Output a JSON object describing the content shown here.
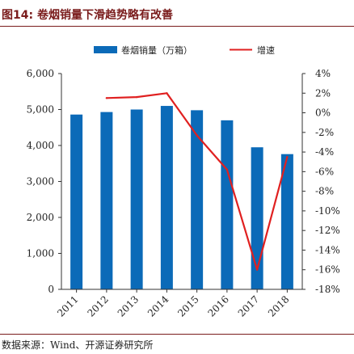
{
  "header": {
    "title": "图14: 卷烟销量下滑趋势略有改善"
  },
  "footer": {
    "source": "数据来源：Wind、开源证券研究所"
  },
  "colors": {
    "bar": "#0b6ab8",
    "line": "#e02020",
    "title": "#7a1c1c",
    "axis": "#333333"
  },
  "chart_data": {
    "type": "bar",
    "categories": [
      "2011",
      "2012",
      "2013",
      "2014",
      "2015",
      "2016",
      "2017",
      "2018"
    ],
    "series": [
      {
        "name": "卷烟销量（万箱）",
        "type": "bar",
        "axis": "left",
        "values": [
          4860,
          4930,
          5000,
          5100,
          4980,
          4700,
          3950,
          3760
        ]
      },
      {
        "name": "增速",
        "type": "line",
        "axis": "right",
        "values": [
          null,
          1.5,
          1.6,
          2.0,
          -2.3,
          -5.8,
          -16.0,
          -4.5
        ]
      }
    ],
    "y_left": {
      "ticks": [
        "6,000",
        "5,000",
        "4,000",
        "3,000",
        "2,000",
        "1,000",
        "0"
      ],
      "ylim": [
        0,
        6000
      ]
    },
    "y_right": {
      "ticks": [
        "4%",
        "2%",
        "0%",
        "-2%",
        "-4%",
        "-6%",
        "-8%",
        "-10%",
        "-12%",
        "-14%",
        "-16%",
        "-18%"
      ],
      "ylim": [
        -18,
        4
      ]
    },
    "legend_position": "top",
    "grid": false
  }
}
